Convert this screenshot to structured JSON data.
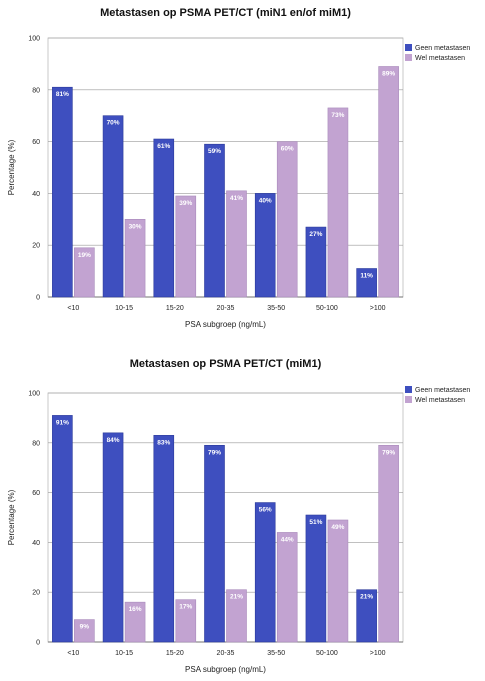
{
  "chart_data": [
    {
      "type": "bar",
      "title": "Metastasen op PSMA PET/CT (miN1 en/of miM1)",
      "xlabel": "PSA subgroep (ng/mL)",
      "ylabel": "Percentage (%)",
      "ylim": [
        0,
        100
      ],
      "yticks": [
        "0",
        "20",
        "40",
        "60",
        "80",
        "100"
      ],
      "grid": true,
      "legend_position": "top-right",
      "categories": [
        "<10",
        "10-15",
        "15-20",
        "20-35",
        "35-50",
        "50-100",
        ">100"
      ],
      "series": [
        {
          "name": "Geen metastasen",
          "color": "#3e4fbf",
          "values": [
            81,
            70,
            61,
            59,
            40,
            27,
            11
          ],
          "labels": [
            "81%",
            "70%",
            "61%",
            "59%",
            "40%",
            "27%",
            "11%"
          ]
        },
        {
          "name": "Wel metastasen",
          "color": "#c2a3d1",
          "values": [
            19,
            30,
            39,
            41,
            60,
            73,
            89
          ],
          "labels": [
            "19%",
            "30%",
            "39%",
            "41%",
            "60%",
            "73%",
            "89%"
          ]
        }
      ]
    },
    {
      "type": "bar",
      "title": "Metastasen op PSMA PET/CT (miM1)",
      "xlabel": "PSA subgroep (ng/mL)",
      "ylabel": "Percentage (%)",
      "ylim": [
        0,
        100
      ],
      "yticks": [
        "0",
        "20",
        "40",
        "60",
        "80",
        "100"
      ],
      "grid": true,
      "legend_position": "top-right",
      "categories": [
        "<10",
        "10-15",
        "15-20",
        "20-35",
        "35-50",
        "50-100",
        ">100"
      ],
      "series": [
        {
          "name": "Geen metastasen",
          "color": "#3e4fbf",
          "values": [
            91,
            84,
            83,
            79,
            56,
            51,
            21
          ],
          "labels": [
            "91%",
            "84%",
            "83%",
            "79%",
            "56%",
            "51%",
            "21%"
          ]
        },
        {
          "name": "Wel metastasen",
          "color": "#c2a3d1",
          "values": [
            9,
            16,
            17,
            21,
            44,
            49,
            79
          ],
          "labels": [
            "9%",
            "16%",
            "17%",
            "21%",
            "44%",
            "49%",
            "79%"
          ]
        }
      ]
    }
  ]
}
